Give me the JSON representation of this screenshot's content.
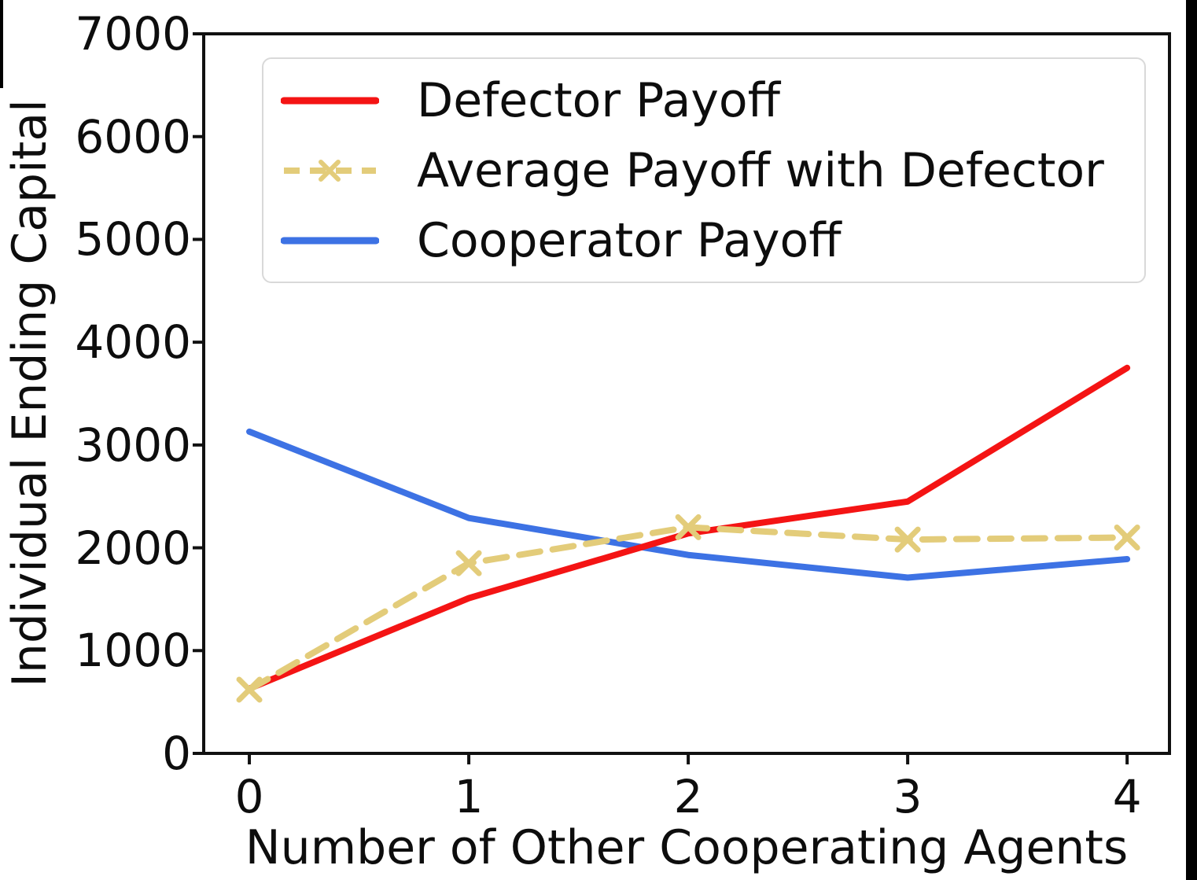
{
  "chart_data": {
    "type": "line",
    "title": "",
    "xlabel": "Number of Other Cooperating Agents",
    "ylabel": "Individual Ending Capital",
    "x": [
      0,
      1,
      2,
      3,
      4
    ],
    "xticks": [
      "0",
      "1",
      "2",
      "3",
      "4"
    ],
    "yticks": [
      "0",
      "1000",
      "2000",
      "3000",
      "4000",
      "5000",
      "6000",
      "7000"
    ],
    "ytick_values": [
      0,
      1000,
      2000,
      3000,
      4000,
      5000,
      6000,
      7000
    ],
    "xlim": [
      -0.208,
      4.193
    ],
    "ylim": [
      0,
      7000
    ],
    "grid": false,
    "legend_position": "upper left",
    "axis_color": "#111111",
    "series": [
      {
        "name": "Defector Payoff",
        "color": "#f41414",
        "style": "solid",
        "marker": "none",
        "values": [
          630,
          1510,
          2140,
          2450,
          3750
        ]
      },
      {
        "name": "Average Payoff with Defector",
        "color": "#e3cc7a",
        "style": "dashed",
        "marker": "x",
        "values": [
          620,
          1850,
          2200,
          2080,
          2100
        ]
      },
      {
        "name": "Cooperator Payoff",
        "color": "#3d72e4",
        "style": "solid",
        "marker": "none",
        "values": [
          3130,
          2290,
          1930,
          1710,
          1890
        ]
      }
    ]
  },
  "artifacts": {
    "right_border_color": "#000000",
    "topleft_sliver_color": "#000000"
  }
}
